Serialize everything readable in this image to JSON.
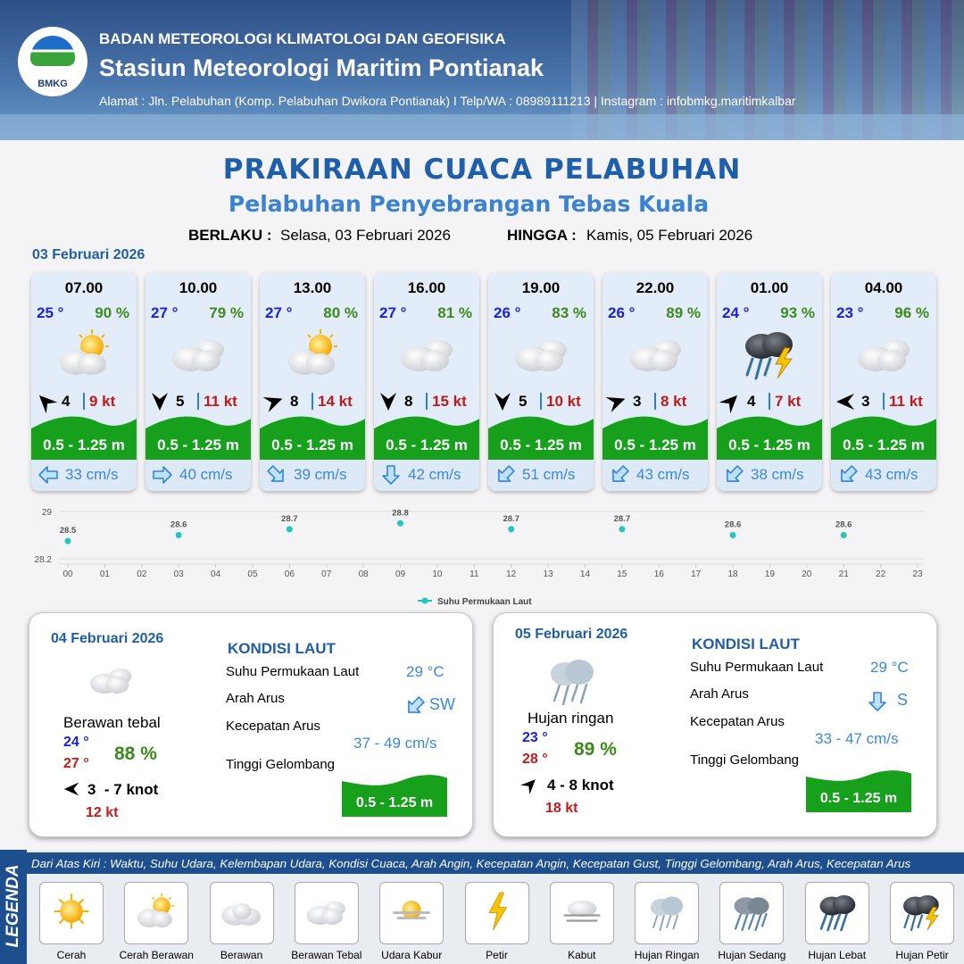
{
  "header": {
    "logo": "BMKG",
    "agency": "BADAN METEOROLOGI KLIMATOLOGI DAN GEOFISIKA",
    "station": "Stasiun Meteorologi Maritim Pontianak",
    "address": "Alamat : Jln. Pelabuhan (Komp. Pelabuhan Dwikora Pontianak) I Telp/WA : 08989111213 | Instagram : infobmkg.maritimkalbar"
  },
  "title": "PRAKIRAAN CUACA PELABUHAN",
  "subtitle": "Pelabuhan Penyebrangan Tebas Kuala",
  "validity": {
    "from_label": "BERLAKU :",
    "from": "Selasa, 03 Februari 2026",
    "to_label": "HINGGA :",
    "to": "Kamis, 05 Februari 2026"
  },
  "today": {
    "date": "03 Februari 2026",
    "slots": [
      {
        "time": "07.00",
        "temp": "25 °",
        "humidity": "90 %",
        "wind": "4",
        "gust": "9 kt",
        "wave": "0.5 - 1.25 m",
        "current": "33 cm/s"
      },
      {
        "time": "10.00",
        "temp": "27 °",
        "humidity": "79 %",
        "wind": "5",
        "gust": "11 kt",
        "wave": "0.5 - 1.25 m",
        "current": "40 cm/s"
      },
      {
        "time": "13.00",
        "temp": "27 °",
        "humidity": "80 %",
        "wind": "8",
        "gust": "14 kt",
        "wave": "0.5 - 1.25 m",
        "current": "39 cm/s"
      },
      {
        "time": "16.00",
        "temp": "27 °",
        "humidity": "81 %",
        "wind": "8",
        "gust": "15 kt",
        "wave": "0.5 - 1.25 m",
        "current": "42 cm/s"
      },
      {
        "time": "19.00",
        "temp": "26 °",
        "humidity": "83 %",
        "wind": "5",
        "gust": "10 kt",
        "wave": "0.5 - 1.25 m",
        "current": "51 cm/s"
      },
      {
        "time": "22.00",
        "temp": "26 °",
        "humidity": "89 %",
        "wind": "3",
        "gust": "8 kt",
        "wave": "0.5 - 1.25 m",
        "current": "43 cm/s"
      },
      {
        "time": "01.00",
        "temp": "24 °",
        "humidity": "93 %",
        "wind": "4",
        "gust": "7 kt",
        "wave": "0.5 - 1.25 m",
        "current": "38 cm/s"
      },
      {
        "time": "04.00",
        "temp": "23 °",
        "humidity": "96 %",
        "wind": "3",
        "gust": "11 kt",
        "wave": "0.5 - 1.25 m",
        "current": "43 cm/s"
      }
    ]
  },
  "chart_data": {
    "type": "scatter",
    "x": [
      0,
      3,
      6,
      9,
      12,
      15,
      18,
      21
    ],
    "series": [
      {
        "name": "Suhu Permukaan Laut",
        "color": "#22c7b8",
        "values": [
          28.5,
          28.6,
          28.7,
          28.8,
          28.7,
          28.7,
          28.6,
          28.6
        ]
      }
    ],
    "xlim": [
      0,
      23
    ],
    "xticks": [
      {
        "value": 0,
        "label": "00"
      },
      {
        "value": 1,
        "label": "01"
      },
      {
        "value": 2,
        "label": "02"
      },
      {
        "value": 3,
        "label": "03"
      },
      {
        "value": 4,
        "label": "04"
      },
      {
        "value": 5,
        "label": "05"
      },
      {
        "value": 6,
        "label": "06"
      },
      {
        "value": 7,
        "label": "07"
      },
      {
        "value": 8,
        "label": "08"
      },
      {
        "value": 9,
        "label": "09"
      },
      10,
      11,
      12,
      13,
      14,
      15,
      16,
      17,
      18,
      19,
      20,
      21,
      22,
      23
    ],
    "ylim": [
      28.2,
      29
    ],
    "yticks": [
      28.2,
      29
    ],
    "grid": true,
    "legend": "bottom"
  },
  "days": [
    {
      "date": "04 Februari 2026",
      "weather": "Berawan tebal",
      "temp_min": "24 °",
      "temp_max": "27 °",
      "humidity": "88 %",
      "wind": "3  - 7 knot",
      "gust": "12 kt",
      "sea_title": "KONDISI LAUT",
      "sst_label": "Suhu Permukaan Laut",
      "sst": "29 °C",
      "dir_label": "Arah Arus",
      "dir": "SW",
      "speed_label": "Kecepatan Arus",
      "speed": "37 - 49 cm/s",
      "wave_label": "Tinggi Gelombang",
      "wave": "0.5 - 1.25 m"
    },
    {
      "date": "05 Februari 2026",
      "weather": "Hujan ringan",
      "temp_min": "23 °",
      "temp_max": "28 °",
      "humidity": "89 %",
      "wind": "4 - 8 knot",
      "gust": "18 kt",
      "sea_title": "KONDISI LAUT",
      "sst_label": "Suhu Permukaan Laut",
      "sst": "29 °C",
      "dir_label": "Arah Arus",
      "dir": "S",
      "speed_label": "Kecepatan Arus",
      "speed": "33 - 47 cm/s",
      "wave_label": "Tinggi Gelombang",
      "wave": "0.5 - 1.25 m"
    }
  ],
  "legend": {
    "title": "LEGENDA",
    "note": "Dari Atas Kiri : Waktu, Suhu Udara, Kelembapan Udara, Kondisi Cuaca, Arah Angin, Kecepatan Angin, Kecepatan Gust, Tinggi Gelombang, Arah Arus, Kecepatan Arus",
    "items": [
      "Cerah",
      "Cerah Berawan",
      "Berawan",
      "Berawan Tebal",
      "Udara Kabur",
      "Petir",
      "Kabut",
      "Hujan Ringan",
      "Hujan Sedang",
      "Hujan Lebat",
      "Hujan Petir"
    ]
  }
}
